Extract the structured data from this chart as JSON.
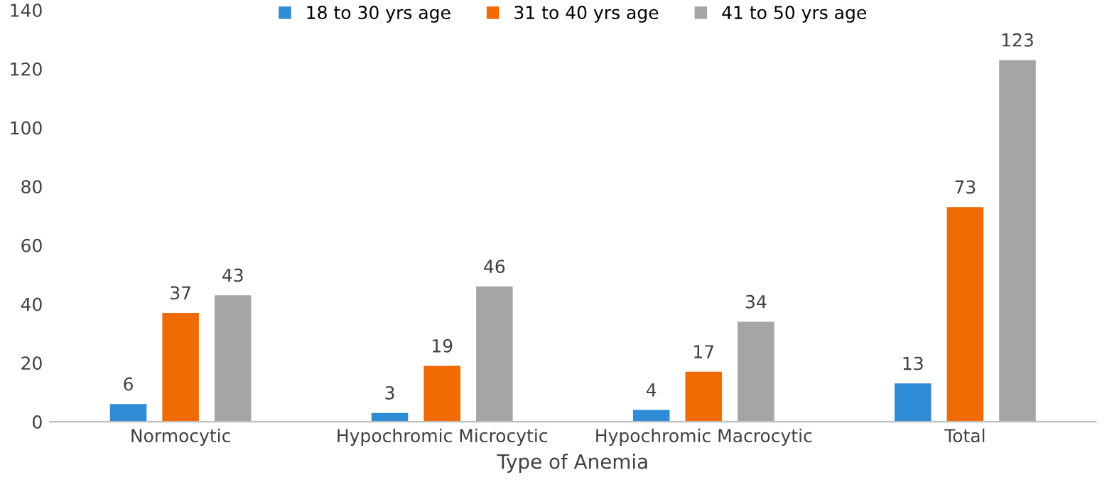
{
  "chart_data": {
    "type": "bar",
    "xlabel": "Type of Anemia",
    "categories": [
      "Normocytic",
      "Hypochromic Microcytic",
      "Hypochromic Macrocytic",
      "Total"
    ],
    "series": [
      {
        "name": "18 to 30 yrs age",
        "color": "#2e8bd6",
        "values": [
          6,
          3,
          4,
          13
        ]
      },
      {
        "name": "31 to 40 yrs age",
        "color": "#ef6a00",
        "values": [
          37,
          19,
          17,
          73
        ]
      },
      {
        "name": "41 to 50 yrs age",
        "color": "#a5a5a5",
        "values": [
          43,
          46,
          34,
          123
        ]
      }
    ],
    "ylim": [
      0,
      140
    ],
    "yticks": [
      0,
      20,
      40,
      60,
      80,
      100,
      120,
      140
    ],
    "grid": false,
    "legend": "top",
    "data_labels": true
  }
}
